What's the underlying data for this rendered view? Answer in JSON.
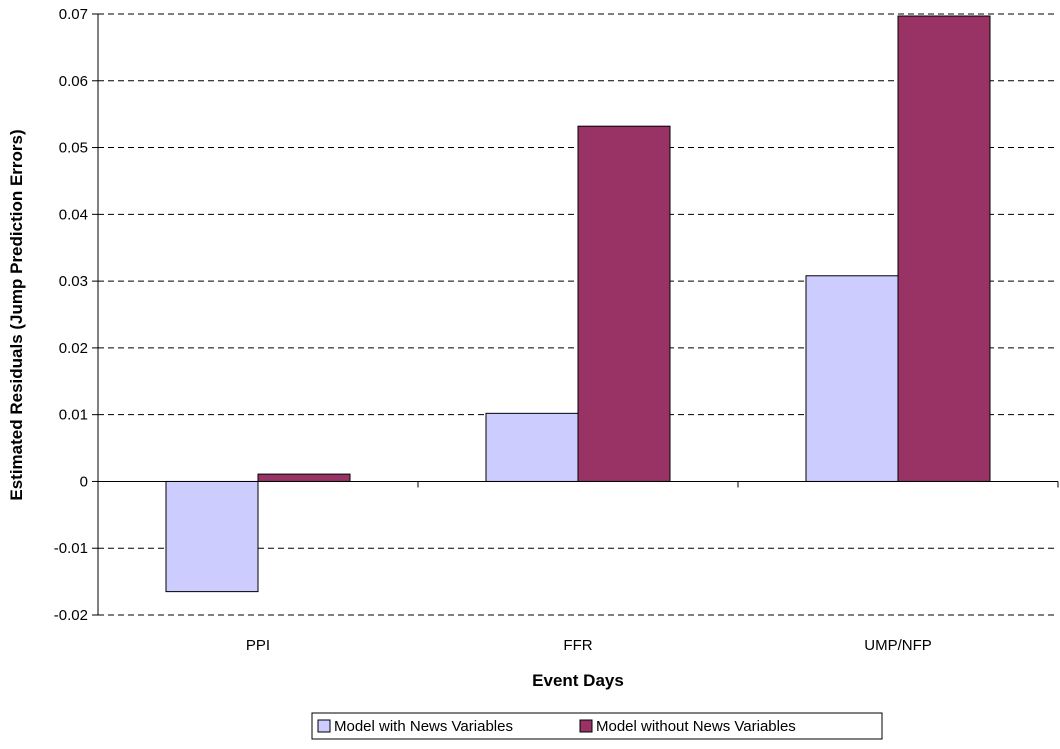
{
  "chart_data": {
    "type": "bar",
    "categories": [
      "PPI",
      "FFR",
      "UMP/NFP"
    ],
    "series": [
      {
        "name": "Model with News Variables",
        "values": [
          -0.0165,
          0.0102,
          0.0308
        ],
        "color": "#ccccff"
      },
      {
        "name": "Model without News Variables",
        "values": [
          0.0011,
          0.0532,
          0.0697
        ],
        "color": "#993366"
      }
    ],
    "xlabel": "Event Days",
    "ylabel": "Estimated Residuals (Jump Prediction Errors)",
    "ylim": [
      -0.02,
      0.07
    ],
    "yticks": [
      -0.02,
      -0.01,
      0,
      0.01,
      0.02,
      0.03,
      0.04,
      0.05,
      0.06,
      0.07
    ],
    "ytick_labels": [
      "-0.02",
      "-0.01",
      "0",
      "0.01",
      "0.02",
      "0.03",
      "0.04",
      "0.05",
      "0.06",
      "0.07"
    ],
    "grid": "horizontal-dashed",
    "legend_position": "bottom-center"
  }
}
